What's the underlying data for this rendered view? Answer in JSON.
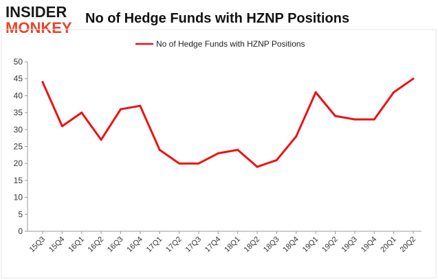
{
  "logo": {
    "top": "INSIDER",
    "bottom": "MONKEY"
  },
  "chart_data": {
    "type": "line",
    "title": "No of Hedge Funds with HZNP Positions",
    "xlabel": "",
    "ylabel": "",
    "categories": [
      "15Q3",
      "15Q4",
      "16Q1",
      "16Q2",
      "16Q3",
      "16Q4",
      "17Q1",
      "17Q2",
      "17Q3",
      "17Q4",
      "18Q1",
      "18Q2",
      "18Q3",
      "18Q4",
      "19Q1",
      "19Q2",
      "19Q3",
      "19Q4",
      "20Q1",
      "20Q2"
    ],
    "series": [
      {
        "name": "No of Hedge Funds with HZNP Positions",
        "values": [
          44,
          31,
          35,
          27,
          36,
          37,
          24,
          20,
          20,
          23,
          24,
          19,
          21,
          28,
          41,
          34,
          33,
          33,
          41,
          45
        ],
        "color": "#ee1111"
      }
    ],
    "ylim": [
      0,
      50
    ],
    "yticks": [
      0,
      5,
      10,
      15,
      20,
      25,
      30,
      35,
      40,
      45,
      50
    ],
    "grid": false,
    "legend": "top-center"
  }
}
